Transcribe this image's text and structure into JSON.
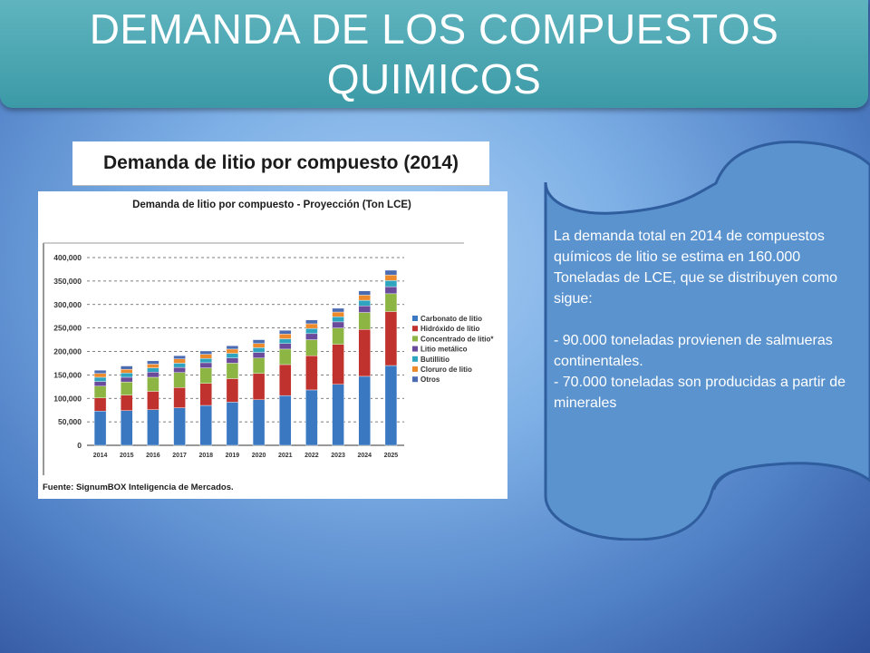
{
  "slide": {
    "title": "DEMANDA DE LOS COMPUESTOS QUIMICOS"
  },
  "chart_header": "Demanda de litio por compuesto (2014)",
  "chart_data": {
    "type": "bar",
    "stacked": true,
    "title": "Demanda de litio por compuesto - Proyección (Ton LCE)",
    "source": "Fuente: SignumBOX Inteligencia de Mercados.",
    "categories": [
      "2014",
      "2015",
      "2016",
      "2017",
      "2018",
      "2019",
      "2020",
      "2021",
      "2022",
      "2023",
      "2024",
      "2025"
    ],
    "y_ticks": [
      "400,000",
      "350,000",
      "300,000",
      "250,000",
      "200,000",
      "150,000",
      "100,000",
      "50,000",
      "0"
    ],
    "ylim": [
      0,
      400000
    ],
    "grid": true,
    "legend_position": "right",
    "series": [
      {
        "name": "Carbonato de litio",
        "color": "#3a78c2",
        "values": [
          73000,
          74000,
          76000,
          80000,
          85000,
          92000,
          97000,
          106000,
          118000,
          130000,
          147000,
          170000
        ]
      },
      {
        "name": "Hidróxido de litio",
        "color": "#c0322e",
        "values": [
          28000,
          33000,
          39000,
          43000,
          47000,
          50000,
          56000,
          66000,
          73000,
          85000,
          100000,
          115000
        ]
      },
      {
        "name": "Concentrado de litio*",
        "color": "#8db543",
        "values": [
          25000,
          28000,
          30000,
          32000,
          33000,
          33000,
          33000,
          33000,
          34000,
          35000,
          36000,
          38000
        ]
      },
      {
        "name": "Litio metálico",
        "color": "#6a4a9a",
        "values": [
          10000,
          10000,
          11000,
          11000,
          11000,
          11000,
          12000,
          12000,
          13000,
          13000,
          14000,
          15000
        ]
      },
      {
        "name": "Butillitio",
        "color": "#2fa4bf",
        "values": [
          9000,
          9000,
          9000,
          9000,
          9000,
          10000,
          10000,
          10000,
          11000,
          11000,
          12000,
          13000
        ]
      },
      {
        "name": "Cloruro de litio",
        "color": "#ec8a2c",
        "values": [
          8000,
          8000,
          8000,
          9000,
          9000,
          9000,
          9000,
          10000,
          10000,
          10000,
          11000,
          12000
        ]
      },
      {
        "name": "Otros",
        "color": "#4c6cb2",
        "values": [
          7000,
          7000,
          7000,
          7000,
          7000,
          7000,
          8000,
          8000,
          8000,
          8000,
          9000,
          10000
        ]
      }
    ]
  },
  "callout": {
    "p1": "La demanda total en 2014  de compuestos químicos de litio se estima en 160.000",
    "p2": "Toneladas de LCE, que se distribuyen como sigue:",
    "p3": "- 90.000 toneladas provienen de salmueras continentales.",
    "p4": "- 70.000  toneladas son  producidas  a partir de  minerales"
  },
  "colors": {
    "banner": "#3b9aa6",
    "callout_fill": "#5b93cf",
    "callout_stroke": "#2f5d9e"
  }
}
